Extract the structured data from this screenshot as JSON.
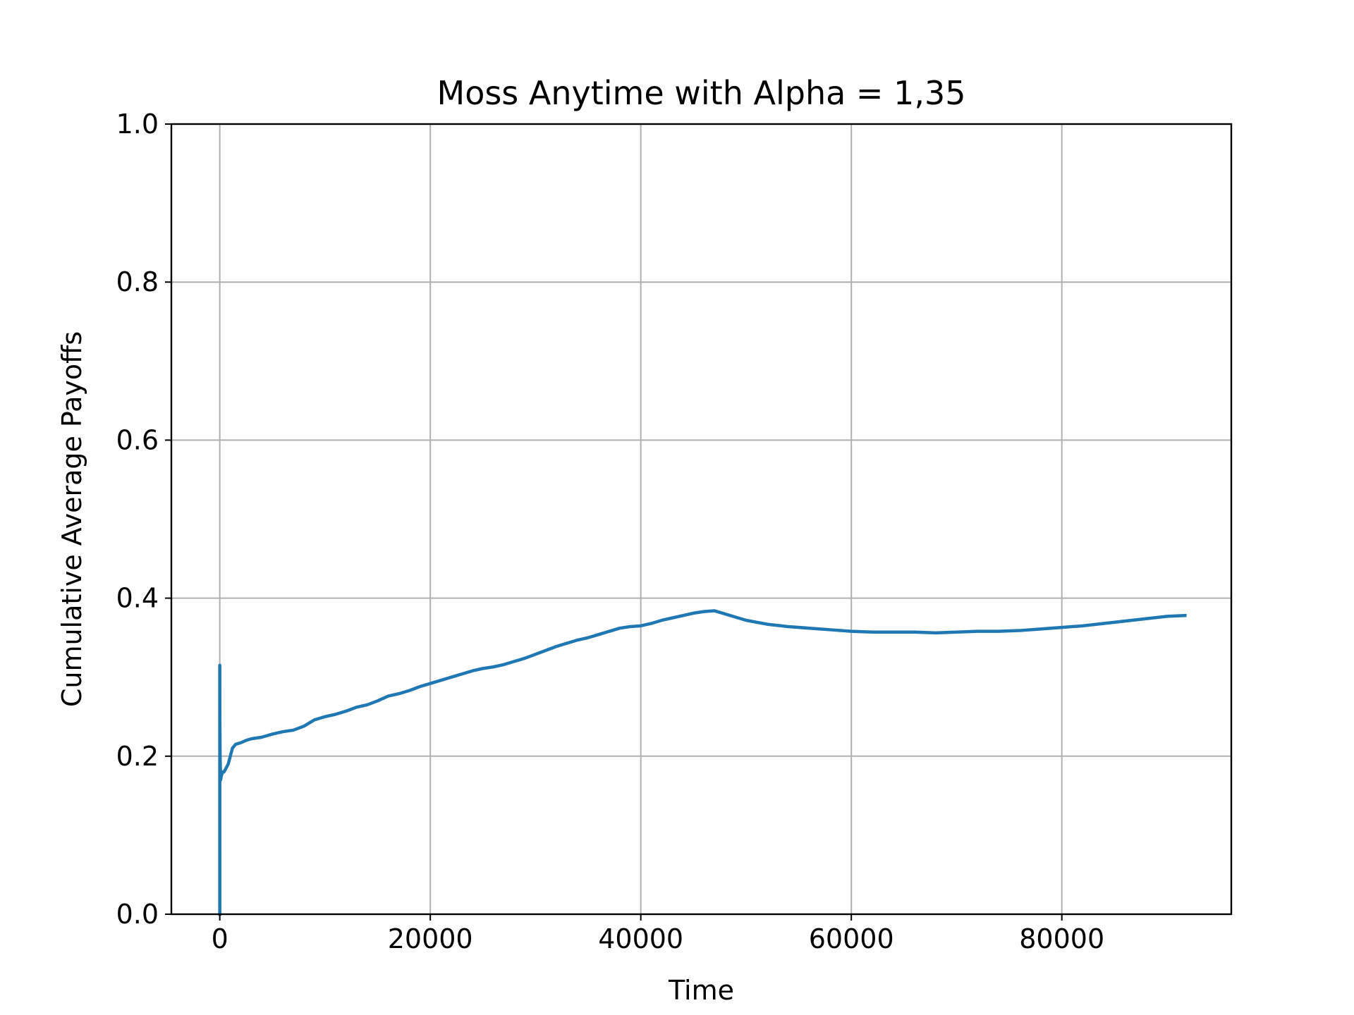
{
  "chart_data": {
    "type": "line",
    "title": "Moss Anytime with Alpha = 1,35",
    "xlabel": "Time",
    "ylabel": "Cumulative Average Payoffs",
    "xlim": [
      -4600,
      96100
    ],
    "ylim": [
      0.0,
      1.0
    ],
    "xticks": [
      0,
      20000,
      40000,
      60000,
      80000
    ],
    "xtick_labels": [
      "0",
      "20000",
      "40000",
      "60000",
      "80000"
    ],
    "yticks": [
      0.0,
      0.2,
      0.4,
      0.6,
      0.8,
      1.0
    ],
    "ytick_labels": [
      "0.0",
      "0.2",
      "0.4",
      "0.6",
      "0.8",
      "1.0"
    ],
    "grid": true,
    "series": [
      {
        "color": "#1f77b4",
        "x": [
          0,
          1,
          3,
          10,
          30,
          80,
          150,
          250,
          400,
          600,
          800,
          1000,
          1200,
          1500,
          2000,
          2500,
          3000,
          4000,
          5000,
          6000,
          7000,
          8000,
          9000,
          10000,
          11000,
          12000,
          13000,
          14000,
          15000,
          16000,
          17000,
          18000,
          19000,
          20000,
          21000,
          22000,
          23000,
          24000,
          25000,
          26000,
          27000,
          28000,
          29000,
          30000,
          31000,
          32000,
          33000,
          34000,
          35000,
          36000,
          37000,
          38000,
          39000,
          40000,
          41000,
          42000,
          43000,
          44000,
          45000,
          46000,
          47000,
          48000,
          49000,
          50000,
          52000,
          54000,
          56000,
          58000,
          60000,
          62000,
          64000,
          66000,
          68000,
          70000,
          72000,
          74000,
          76000,
          78000,
          80000,
          82000,
          84000,
          86000,
          88000,
          90000,
          91700
        ],
        "y": [
          0.0,
          0.315,
          0.28,
          0.24,
          0.2,
          0.17,
          0.175,
          0.18,
          0.18,
          0.185,
          0.19,
          0.2,
          0.21,
          0.215,
          0.217,
          0.22,
          0.222,
          0.224,
          0.228,
          0.231,
          0.233,
          0.238,
          0.246,
          0.25,
          0.253,
          0.257,
          0.262,
          0.265,
          0.27,
          0.276,
          0.279,
          0.283,
          0.288,
          0.292,
          0.296,
          0.3,
          0.304,
          0.308,
          0.311,
          0.313,
          0.316,
          0.32,
          0.324,
          0.329,
          0.334,
          0.339,
          0.343,
          0.347,
          0.35,
          0.354,
          0.358,
          0.362,
          0.364,
          0.365,
          0.368,
          0.372,
          0.375,
          0.378,
          0.381,
          0.383,
          0.384,
          0.38,
          0.376,
          0.372,
          0.367,
          0.364,
          0.362,
          0.36,
          0.358,
          0.357,
          0.357,
          0.357,
          0.356,
          0.357,
          0.358,
          0.358,
          0.359,
          0.361,
          0.363,
          0.365,
          0.368,
          0.371,
          0.374,
          0.377,
          0.378
        ]
      }
    ]
  }
}
